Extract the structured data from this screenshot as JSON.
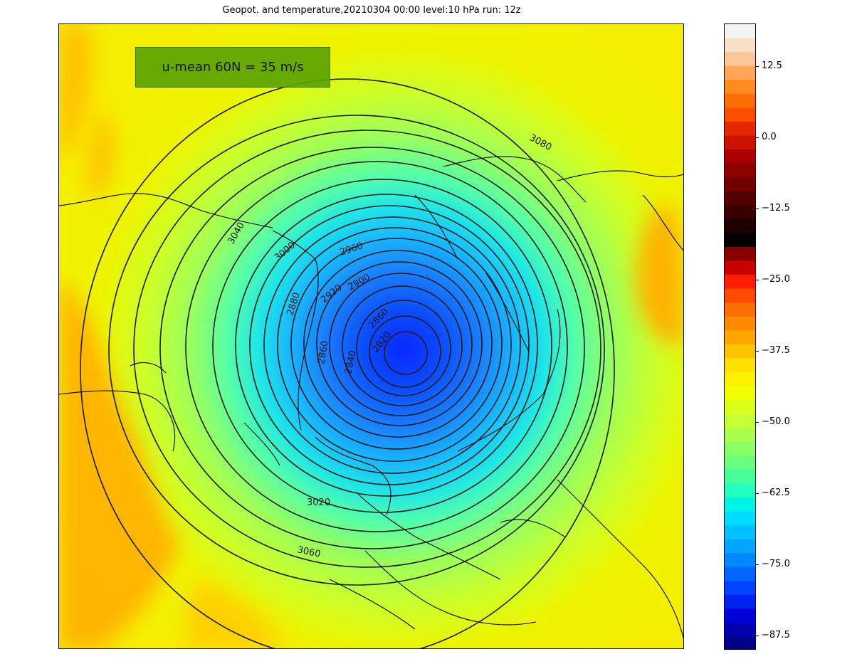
{
  "figure": {
    "title": "Geopot. and temperature,20210304 00:00 level:10 hPa run: 12z",
    "annotation": "u-mean 60N = 35 m/s"
  },
  "colorbar": {
    "tick_labels": [
      "12.5",
      "0.0",
      "−12.5",
      "−25.0",
      "−37.5",
      "−50.0",
      "−62.5",
      "−75.0",
      "−87.5"
    ],
    "colors_top_to_bottom": [
      "#f4f4f4",
      "#fbe0c8",
      "#fdc79a",
      "#ffa756",
      "#ff8a1f",
      "#ff6e00",
      "#ff4e00",
      "#e62800",
      "#cc1100",
      "#aa0000",
      "#8c0000",
      "#700000",
      "#520000",
      "#380000",
      "#1c0000",
      "#000000",
      "#8a0000",
      "#c80000",
      "#ff1f00",
      "#ff4a00",
      "#ff6e00",
      "#ff8a00",
      "#ffa600",
      "#ffc400",
      "#ffe100",
      "#fff200",
      "#f2ff00",
      "#dcff1a",
      "#c6ff33",
      "#aaff4d",
      "#8cff66",
      "#6bff80",
      "#45ff9a",
      "#22ffc0",
      "#00f4e6",
      "#00dcff",
      "#00c2ff",
      "#00a6ff",
      "#0088ff",
      "#0066ff",
      "#0044ff",
      "#0022f0",
      "#0000d8",
      "#0000b0",
      "#00008a"
    ]
  },
  "map": {
    "background_color": "#f2f000",
    "contour_labels": [
      {
        "text": "3080"
      },
      {
        "text": "3060"
      },
      {
        "text": "3020"
      },
      {
        "text": "3000"
      },
      {
        "text": "3040"
      },
      {
        "text": "2960"
      },
      {
        "text": "2920"
      },
      {
        "text": "2900"
      },
      {
        "text": "2880"
      },
      {
        "text": "2860"
      },
      {
        "text": "2860"
      },
      {
        "text": "2840"
      },
      {
        "text": "2820"
      }
    ]
  }
}
